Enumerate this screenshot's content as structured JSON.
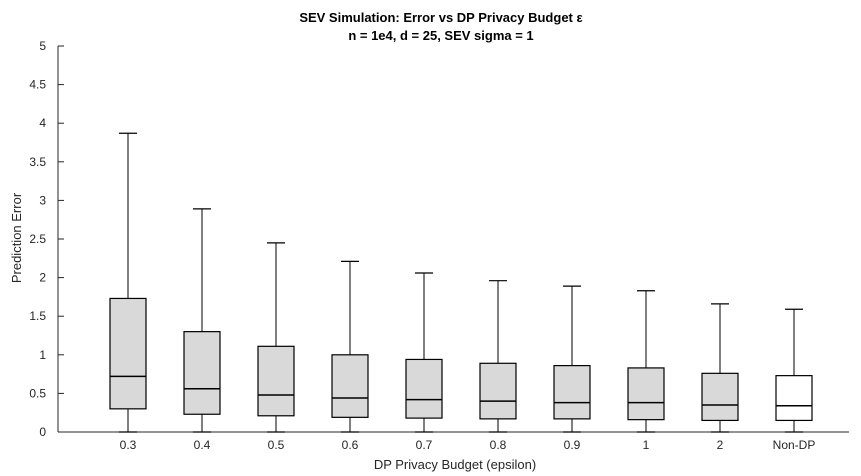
{
  "chart_data": {
    "type": "box",
    "title": "SEV Simulation: Error vs DP Privacy Budget ε",
    "subtitle": "n = 1e4, d = 25, SEV sigma = 1",
    "xlabel": "DP Privacy Budget (epsilon)",
    "ylabel": "Prediction Error",
    "ylim": [
      0,
      5
    ],
    "yticks": [
      "0",
      "0.5",
      "1",
      "1.5",
      "2",
      "2.5",
      "3",
      "3.5",
      "4",
      "4.5",
      "5"
    ],
    "grid": false,
    "colors": {
      "box_fill": "#d9d9d9",
      "last_box_fill": "#ffffff",
      "stroke": "#000000",
      "axis": "#262626"
    },
    "categories": [
      "0.3",
      "0.4",
      "0.5",
      "0.6",
      "0.7",
      "0.8",
      "0.9",
      "1",
      "2",
      "Non-DP"
    ],
    "boxes": [
      {
        "min": 0,
        "q1": 0.3,
        "median": 0.72,
        "q3": 1.73,
        "max": 3.87
      },
      {
        "min": 0,
        "q1": 0.23,
        "median": 0.56,
        "q3": 1.3,
        "max": 2.89
      },
      {
        "min": 0,
        "q1": 0.21,
        "median": 0.48,
        "q3": 1.11,
        "max": 2.45
      },
      {
        "min": 0,
        "q1": 0.19,
        "median": 0.44,
        "q3": 1.0,
        "max": 2.21
      },
      {
        "min": 0,
        "q1": 0.18,
        "median": 0.42,
        "q3": 0.94,
        "max": 2.06
      },
      {
        "min": 0,
        "q1": 0.17,
        "median": 0.4,
        "q3": 0.89,
        "max": 1.96
      },
      {
        "min": 0,
        "q1": 0.17,
        "median": 0.38,
        "q3": 0.86,
        "max": 1.89
      },
      {
        "min": 0,
        "q1": 0.16,
        "median": 0.38,
        "q3": 0.83,
        "max": 1.83
      },
      {
        "min": 0,
        "q1": 0.15,
        "median": 0.35,
        "q3": 0.76,
        "max": 1.66
      },
      {
        "min": 0,
        "q1": 0.15,
        "median": 0.34,
        "q3": 0.73,
        "max": 1.59
      }
    ]
  }
}
